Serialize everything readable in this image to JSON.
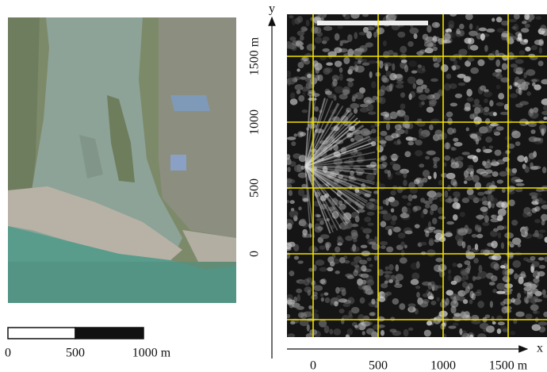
{
  "scale_bar": {
    "labels": [
      "0",
      "500",
      "1000 m"
    ]
  },
  "radar_panel": {
    "x_axis_label": "x",
    "y_axis_label": "y",
    "xticks": [
      0,
      500,
      1000,
      {
        "value": 1500,
        "label": "1500 m"
      }
    ],
    "yticks": [
      {
        "value": -500,
        "label": null
      },
      0,
      500,
      1000,
      {
        "value": 1500,
        "label": "1500 m"
      }
    ]
  }
}
